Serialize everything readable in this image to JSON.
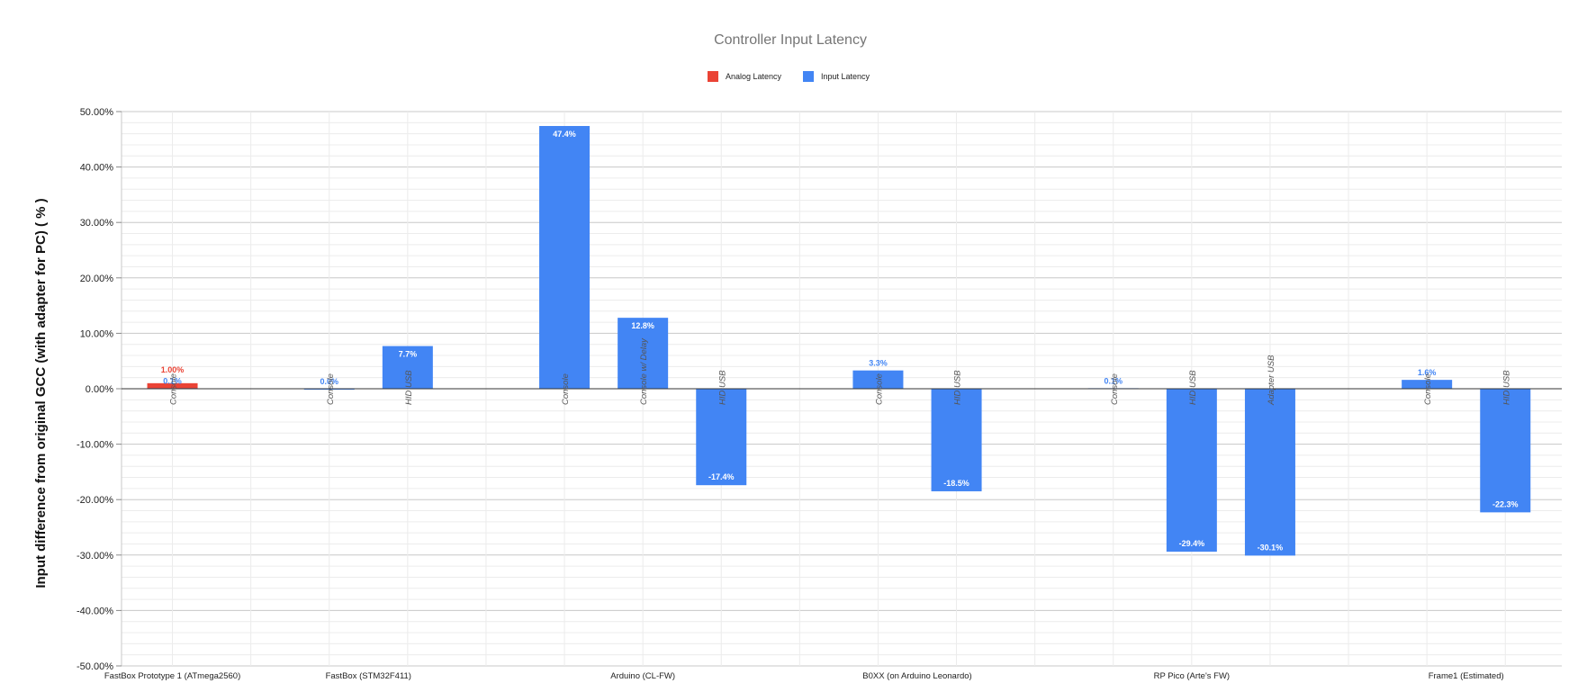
{
  "chart_data": {
    "type": "bar",
    "title": "Controller Input Latency",
    "ylabel": "Input difference from original GCC (with adapter for PC) ( % )",
    "xlabel": "",
    "ylim": [
      -50,
      50
    ],
    "yticks": [
      "50.00%",
      "40.00%",
      "30.00%",
      "20.00%",
      "10.00%",
      "0.00%",
      "-10.00%",
      "-20.00%",
      "-30.00%",
      "-40.00%",
      "-50.00%"
    ],
    "legend_position": "top",
    "grid": true,
    "legend": [
      {
        "name": "Analog Latency",
        "color": "#ea4335"
      },
      {
        "name": "Input Latency",
        "color": "#4285f4"
      }
    ],
    "groups": [
      {
        "name": "FastBox Prototype 1 (ATmega2560)",
        "slots": [
          0
        ]
      },
      {
        "name": "FastBox (STM32F411)",
        "slots": [
          2,
          3
        ]
      },
      {
        "name": "Arduino (CL-FW)",
        "slots": [
          5,
          6,
          7
        ]
      },
      {
        "name": "B0XX (on Arduino Leonardo)",
        "slots": [
          9,
          10
        ]
      },
      {
        "name": "RP Pico (Arte's FW)",
        "slots": [
          12,
          13,
          14
        ]
      },
      {
        "name": "Frame1 (Estimated)",
        "slots": [
          16,
          17
        ]
      }
    ],
    "bars": [
      {
        "slot": 0,
        "category": "Console",
        "series": "Analog Latency",
        "value": 1.0,
        "label": "1.00%"
      },
      {
        "slot": 0,
        "category": "Console",
        "series": "Input Latency",
        "value": 0.1,
        "label": "0.1%"
      },
      {
        "slot": 2,
        "category": "Console",
        "series": "Input Latency",
        "value": 0.0,
        "label": "0.0%"
      },
      {
        "slot": 3,
        "category": "HID USB",
        "series": "Input Latency",
        "value": 7.7,
        "label": "7.7%"
      },
      {
        "slot": 5,
        "category": "Console",
        "series": "Input Latency",
        "value": 47.4,
        "label": "47.4%"
      },
      {
        "slot": 6,
        "category": "Console w/ Delay",
        "series": "Input Latency",
        "value": 12.8,
        "label": "12.8%"
      },
      {
        "slot": 7,
        "category": "HID USB",
        "series": "Input Latency",
        "value": -17.4,
        "label": "-17.4%"
      },
      {
        "slot": 9,
        "category": "Console",
        "series": "Input Latency",
        "value": 3.3,
        "label": "3.3%"
      },
      {
        "slot": 10,
        "category": "HID USB",
        "series": "Input Latency",
        "value": -18.5,
        "label": "-18.5%"
      },
      {
        "slot": 12,
        "category": "Console",
        "series": "Input Latency",
        "value": 0.1,
        "label": "0.1%"
      },
      {
        "slot": 13,
        "category": "HID USB",
        "series": "Input Latency",
        "value": -29.4,
        "label": "-29.4%"
      },
      {
        "slot": 14,
        "category": "Adapter USB",
        "series": "Input Latency",
        "value": -30.1,
        "label": "-30.1%"
      },
      {
        "slot": 16,
        "category": "Console",
        "series": "Input Latency",
        "value": 1.6,
        "label": "1.6%"
      },
      {
        "slot": 17,
        "category": "HID USB",
        "series": "Input Latency",
        "value": -22.3,
        "label": "-22.3%"
      }
    ]
  }
}
